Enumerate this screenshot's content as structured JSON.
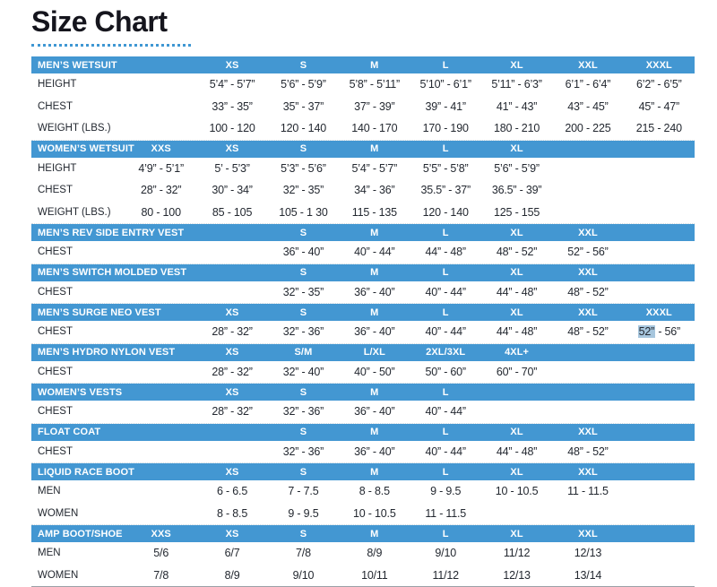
{
  "page": {
    "title": "Size Chart"
  },
  "colors": {
    "header_bg": "#4397d2",
    "header_text": "#ffffff",
    "title": "#15151d",
    "text": "#232830",
    "accent": "#3f97d3",
    "highlight": "#a7c6dd"
  },
  "sections": [
    {
      "title": "MEN’S WETSUIT",
      "cols": [
        "",
        "XS",
        "S",
        "M",
        "L",
        "XL",
        "XXL",
        "XXXL"
      ],
      "rows": [
        {
          "label": "HEIGHT",
          "cells": [
            "",
            "5’4” - 5’7”",
            "5’6” - 5’9”",
            "5’8” - 5’11”",
            "5’10” - 6’1”",
            "5’11” - 6’3”",
            "6’1” - 6’4”",
            "6’2” - 6’5”"
          ]
        },
        {
          "label": "CHEST",
          "cells": [
            "",
            "33” - 35”",
            "35” - 37”",
            "37” - 39”",
            "39” - 41”",
            "41” - 43”",
            "43” - 45”",
            "45” - 47”"
          ]
        },
        {
          "label": "WEIGHT (LBS.)",
          "cells": [
            "",
            "100 - 120",
            "120 - 140",
            "140 - 170",
            "170 - 190",
            "180 - 210",
            "200 - 225",
            "215 - 240"
          ]
        }
      ]
    },
    {
      "title": "WOMEN’S WETSUIT",
      "cols": [
        "XXS",
        "XS",
        "S",
        "M",
        "L",
        "XL",
        "",
        ""
      ],
      "rows": [
        {
          "label": "HEIGHT",
          "cells": [
            "4’9” - 5’1”",
            "5’ - 5’3”",
            "5’3” - 5’6”",
            "5’4” - 5’7”",
            "5’5” - 5’8”",
            "5’6” - 5’9”",
            "",
            ""
          ]
        },
        {
          "label": "CHEST",
          "cells": [
            "28” - 32”",
            "30” - 34”",
            "32” - 35”",
            "34” - 36”",
            "35.5” - 37”",
            "36.5” - 39”",
            "",
            ""
          ]
        },
        {
          "label": "WEIGHT (LBS.)",
          "cells": [
            "80 - 100",
            "85 - 105",
            "105 - 1 30",
            "115 - 135",
            "120 - 140",
            "125 - 155",
            "",
            ""
          ]
        }
      ]
    },
    {
      "title": "MEN’S REV SIDE ENTRY VEST",
      "cols": [
        "",
        "",
        "S",
        "M",
        "L",
        "XL",
        "XXL",
        ""
      ],
      "rows": [
        {
          "label": "CHEST",
          "cells": [
            "",
            "",
            "36” - 40”",
            "40” - 44”",
            "44” - 48”",
            "48” - 52”",
            "52” - 56”",
            ""
          ]
        }
      ]
    },
    {
      "title": "MEN’S SWITCH MOLDED VEST",
      "cols": [
        "",
        "",
        "S",
        "M",
        "L",
        "XL",
        "XXL",
        ""
      ],
      "rows": [
        {
          "label": "CHEST",
          "cells": [
            "",
            "",
            "32” - 35”",
            "36” - 40”",
            "40” - 44”",
            "44” - 48”",
            "48” - 52”",
            ""
          ]
        }
      ]
    },
    {
      "title": "MEN’S SURGE NEO VEST",
      "cols": [
        "",
        "XS",
        "S",
        "M",
        "L",
        "XL",
        "XXL",
        "XXXL"
      ],
      "rows": [
        {
          "label": "CHEST",
          "cells": [
            "",
            "28” - 32”",
            "32” - 36”",
            "36” - 40”",
            "40” - 44”",
            "44” - 48”",
            "48” - 52”",
            {
              "hl": "52”",
              "rest": " - 56”"
            }
          ]
        }
      ]
    },
    {
      "title": "MEN’S HYDRO NYLON VEST",
      "cols": [
        "",
        "XS",
        "S/M",
        "L/XL",
        "2XL/3XL",
        "4XL+",
        "",
        ""
      ],
      "rows": [
        {
          "label": "CHEST",
          "cells": [
            "",
            "28” - 32”",
            "32” - 40”",
            "40” - 50”",
            "50” - 60”",
            "60” - 70”",
            "",
            ""
          ]
        }
      ]
    },
    {
      "title": "WOMEN’S VESTS",
      "cols": [
        "",
        "XS",
        "S",
        "M",
        "L",
        "",
        "",
        ""
      ],
      "rows": [
        {
          "label": "CHEST",
          "cells": [
            "",
            "28” - 32”",
            "32” - 36”",
            "36” - 40”",
            "40” - 44”",
            "",
            "",
            ""
          ]
        }
      ]
    },
    {
      "title": "FLOAT COAT",
      "cols": [
        "",
        "",
        "S",
        "M",
        "L",
        "XL",
        "XXL",
        ""
      ],
      "rows": [
        {
          "label": "CHEST",
          "cells": [
            "",
            "",
            "32” - 36”",
            "36” - 40”",
            "40” - 44”",
            "44” - 48”",
            "48” - 52”",
            ""
          ]
        }
      ]
    },
    {
      "title": "LIQUID RACE BOOT",
      "cols": [
        "",
        "XS",
        "S",
        "M",
        "L",
        "XL",
        "XXL",
        ""
      ],
      "rows": [
        {
          "label": "MEN",
          "cells": [
            "",
            "6 - 6.5",
            "7 - 7.5",
            "8 - 8.5",
            "9 - 9.5",
            "10 - 10.5",
            "11 - 11.5",
            ""
          ]
        },
        {
          "label": "WOMEN",
          "cells": [
            "",
            "8 - 8.5",
            "9 - 9.5",
            "10 - 10.5",
            "11 - 11.5",
            "",
            "",
            ""
          ]
        }
      ]
    },
    {
      "title": "AMP BOOT/SHOE",
      "cols": [
        "XXS",
        "XS",
        "S",
        "M",
        "L",
        "XL",
        "XXL",
        ""
      ],
      "rows": [
        {
          "label": "MEN",
          "cells": [
            "5/6",
            "6/7",
            "7/8",
            "8/9",
            "9/10",
            "11/12",
            "12/13",
            ""
          ]
        },
        {
          "label": "WOMEN",
          "cells": [
            "7/8",
            "8/9",
            "9/10",
            "10/11",
            "11/12",
            "12/13",
            "13/14",
            ""
          ]
        }
      ]
    }
  ]
}
